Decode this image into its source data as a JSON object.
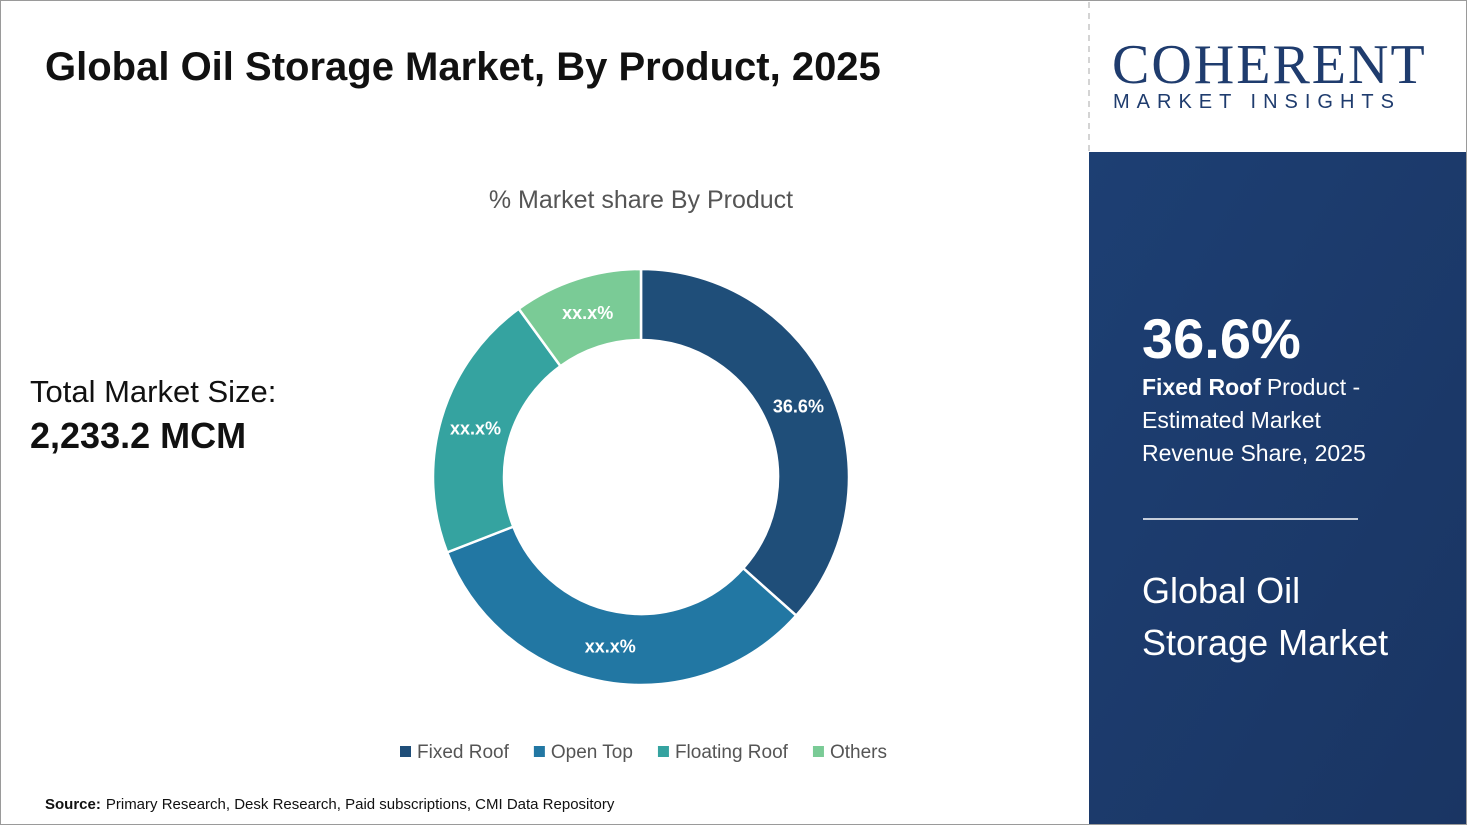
{
  "header": {
    "title": "Global Oil Storage Market, By Product, 2025"
  },
  "market_size": {
    "label": "Total Market Size:",
    "value": "2,233.2 MCM"
  },
  "source": {
    "label": "Source:",
    "text": "Primary Research, Desk Research, Paid subscriptions, CMI Data Repository"
  },
  "logo": {
    "name": "COHERENT",
    "tagline": "MARKET INSIGHTS"
  },
  "sidebar": {
    "stat": "36.6%",
    "stat_bold": "Fixed Roof",
    "stat_lines": [
      "Product -",
      "Estimated Market",
      "Revenue Share, 2025"
    ],
    "heading_lines": [
      "Global Oil",
      "Storage Market"
    ]
  },
  "chart_data": {
    "type": "pie",
    "donut": true,
    "title": "% Market share By Product",
    "categories": [
      "Fixed Roof",
      "Open Top",
      "Floating Roof",
      "Others"
    ],
    "values": [
      36.6,
      32.5,
      20.9,
      10.0
    ],
    "value_labels": [
      "36.6%",
      "xx.x%",
      "xx.x%",
      "xx.x%"
    ],
    "colors": [
      "#1f4e79",
      "#2277a3",
      "#35a3a0",
      "#7acb96"
    ],
    "legend": "bottom"
  }
}
